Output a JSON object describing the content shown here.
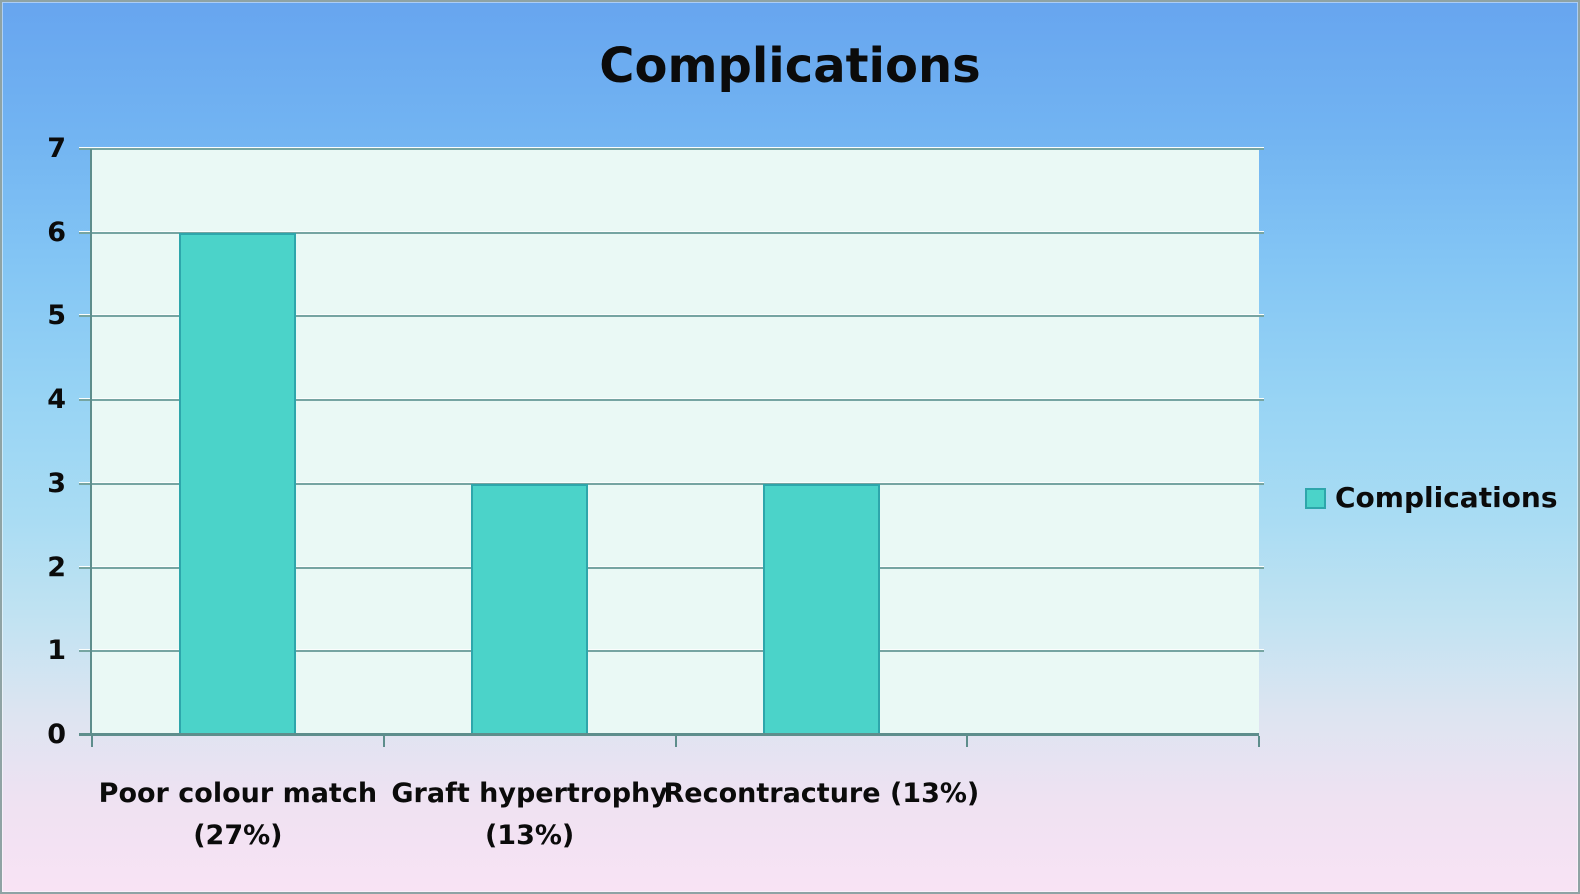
{
  "chart_data": {
    "type": "bar",
    "title": "Complications",
    "categories": [
      "Poor colour match (27%)",
      "Graft hypertrophy (13%)",
      "Recontracture (13%)"
    ],
    "category_label_lines": [
      [
        "Poor colour match",
        "(27%)"
      ],
      [
        "Graft hypertrophy",
        "(13%)"
      ],
      [
        "Recontracture (13%)"
      ]
    ],
    "series": [
      {
        "name": "Complications",
        "values": [
          6,
          3,
          3
        ]
      }
    ],
    "xlabel": "",
    "ylabel": "",
    "ylim": [
      0,
      7
    ],
    "y_step": 1,
    "y_tick_labels": [
      "0",
      "1",
      "2",
      "3",
      "4",
      "5",
      "6",
      "7"
    ],
    "grid": true,
    "legend_position": "right",
    "category_slots": 4
  },
  "colors": {
    "bar_fill": "#4BD3C9",
    "bar_border": "#2EA6AB",
    "plot_bg": "#EAF9F5",
    "gridline": "#76A5A2",
    "gridline_highlight": "#FBFEFD",
    "axis": "#5E8E8C",
    "text": "#0B0B0B",
    "frame_border": "#8FA3A4",
    "bg_top": "#67A5EF",
    "bg_bottom": "#F8E3F4"
  }
}
